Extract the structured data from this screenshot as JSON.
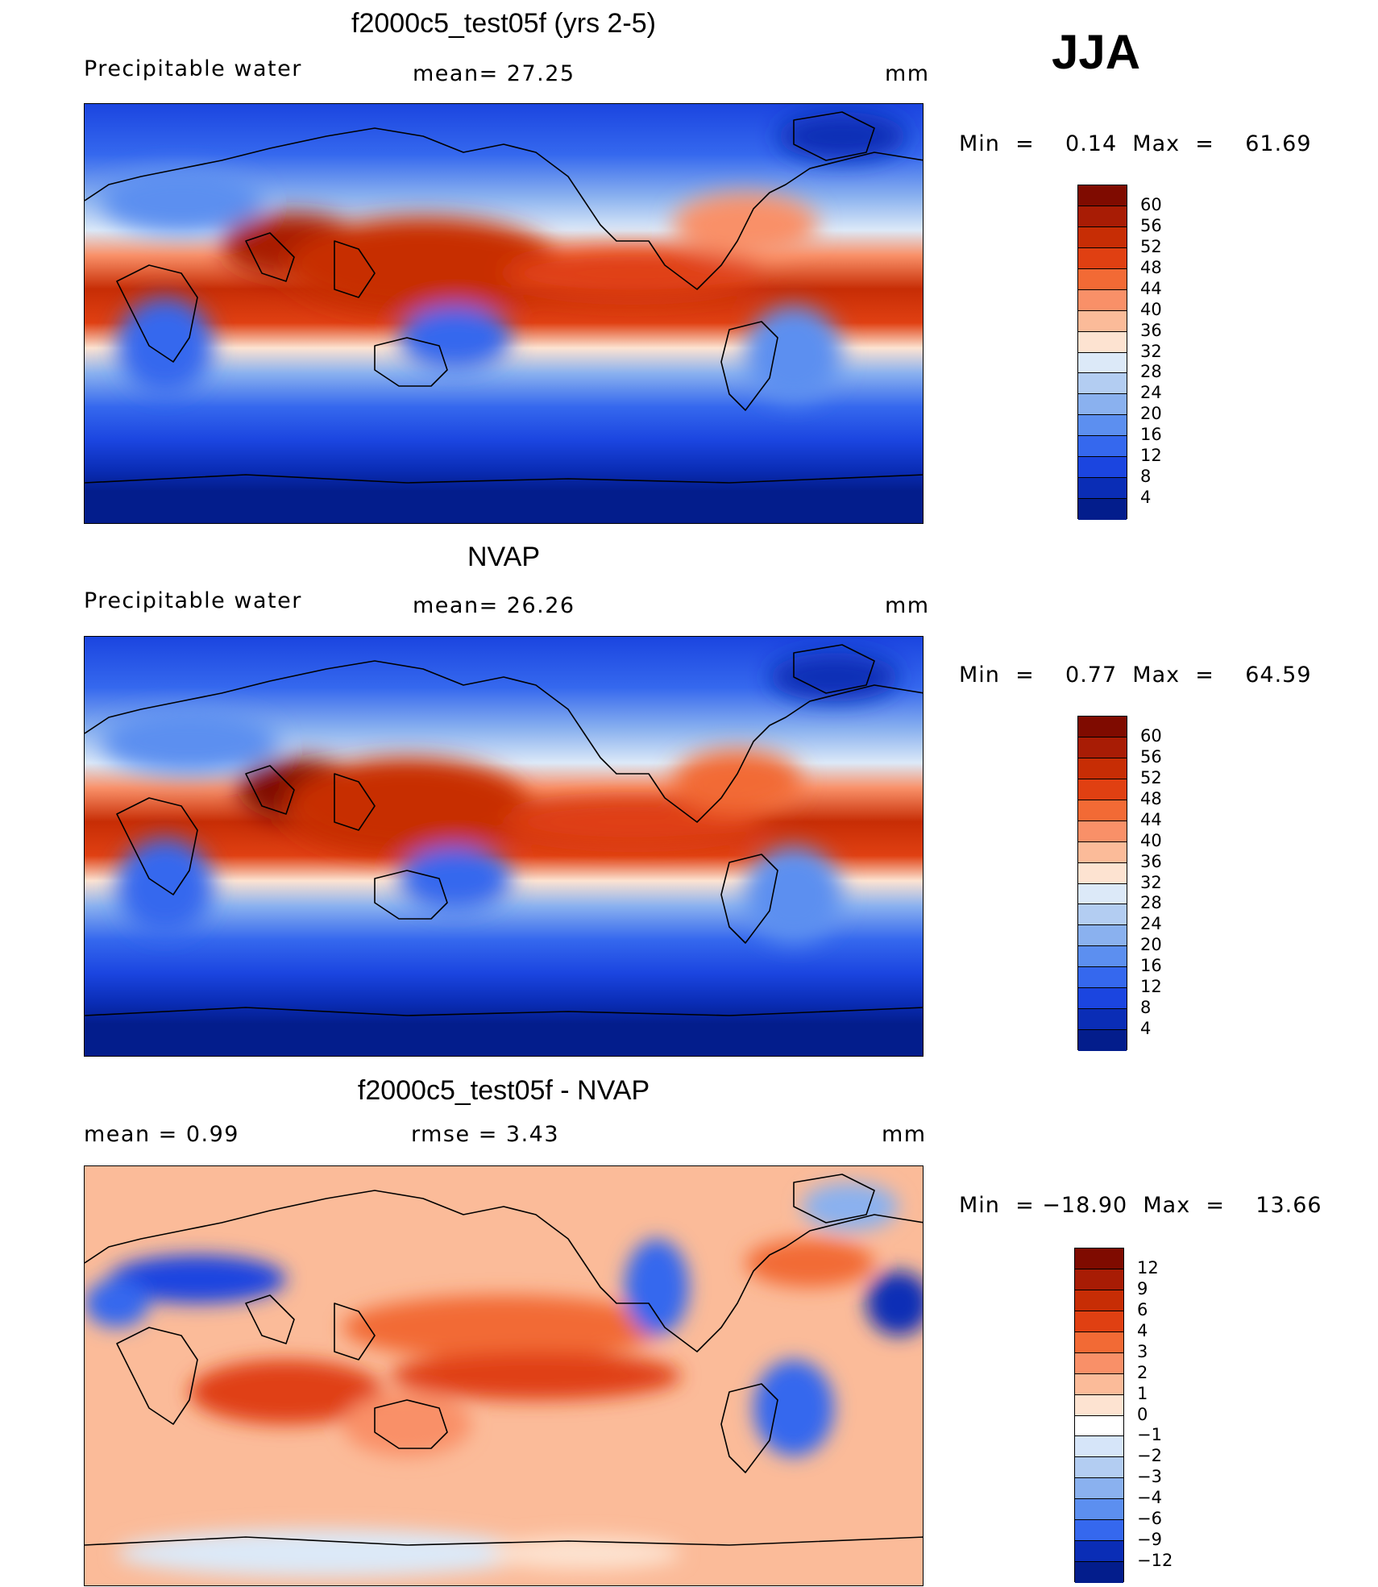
{
  "season": "JJA",
  "panels": [
    {
      "id": "model",
      "title": "f2000c5_test05f (yrs 2-5)",
      "left_label": "Precipitable  water",
      "center_label": "mean=   27.25",
      "units": "mm",
      "minmax": "Min  =    0.14  Max  =    61.69",
      "levels": [
        "60",
        "56",
        "52",
        "48",
        "44",
        "40",
        "36",
        "32",
        "28",
        "24",
        "20",
        "16",
        "12",
        "8",
        "4"
      ],
      "colors": [
        "#7f0b00",
        "#a81c05",
        "#c72d05",
        "#e04012",
        "#f26a35",
        "#f99068",
        "#fbbb99",
        "#fde3d1",
        "#dce9f8",
        "#b3cdf2",
        "#8ab1ef",
        "#5c8ff0",
        "#3568ee",
        "#1b45e0",
        "#0a2db6",
        "#031d8c"
      ]
    },
    {
      "id": "obs",
      "title": "NVAP",
      "left_label": "Precipitable  water",
      "center_label": "mean=   26.26",
      "units": "mm",
      "minmax": "Min  =    0.77  Max  =    64.59",
      "levels": [
        "60",
        "56",
        "52",
        "48",
        "44",
        "40",
        "36",
        "32",
        "28",
        "24",
        "20",
        "16",
        "12",
        "8",
        "4"
      ],
      "colors": [
        "#7f0b00",
        "#a81c05",
        "#c72d05",
        "#e04012",
        "#f26a35",
        "#f99068",
        "#fbbb99",
        "#fde3d1",
        "#dce9f8",
        "#b3cdf2",
        "#8ab1ef",
        "#5c8ff0",
        "#3568ee",
        "#1b45e0",
        "#0a2db6",
        "#031d8c"
      ]
    },
    {
      "id": "diff",
      "title": "f2000c5_test05f - NVAP",
      "left_label": "mean  =     0.99",
      "center_label": "rmse  =     3.43",
      "units": "mm",
      "minmax": "Min  = −18.90  Max  =    13.66",
      "levels": [
        "12",
        "9",
        "6",
        "4",
        "3",
        "2",
        "1",
        "0",
        "−1",
        "−2",
        "−3",
        "−4",
        "−6",
        "−9",
        "−12"
      ],
      "colors": [
        "#7f0b00",
        "#a81c05",
        "#c72d05",
        "#e04012",
        "#f26a35",
        "#f99068",
        "#fbbb99",
        "#fde3d1",
        "#ffffff",
        "#d6e5f9",
        "#b3cdf2",
        "#8ab1ef",
        "#5c8ff0",
        "#3568ee",
        "#0a2db6",
        "#031d8c"
      ]
    }
  ]
}
